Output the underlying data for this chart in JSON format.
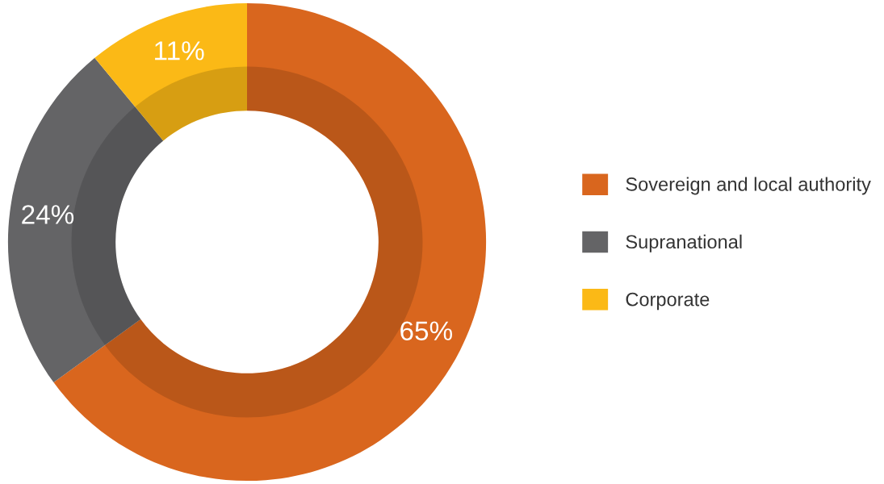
{
  "chart_data": {
    "type": "donut",
    "categories": [
      "Sovereign and local authority",
      "Supranational",
      "Corporate"
    ],
    "values": [
      65,
      24,
      11
    ],
    "colors": [
      "#d9661e",
      "#646466",
      "#fbb916"
    ],
    "value_labels": [
      "65%",
      "24%",
      "11%"
    ],
    "legend": "right"
  }
}
